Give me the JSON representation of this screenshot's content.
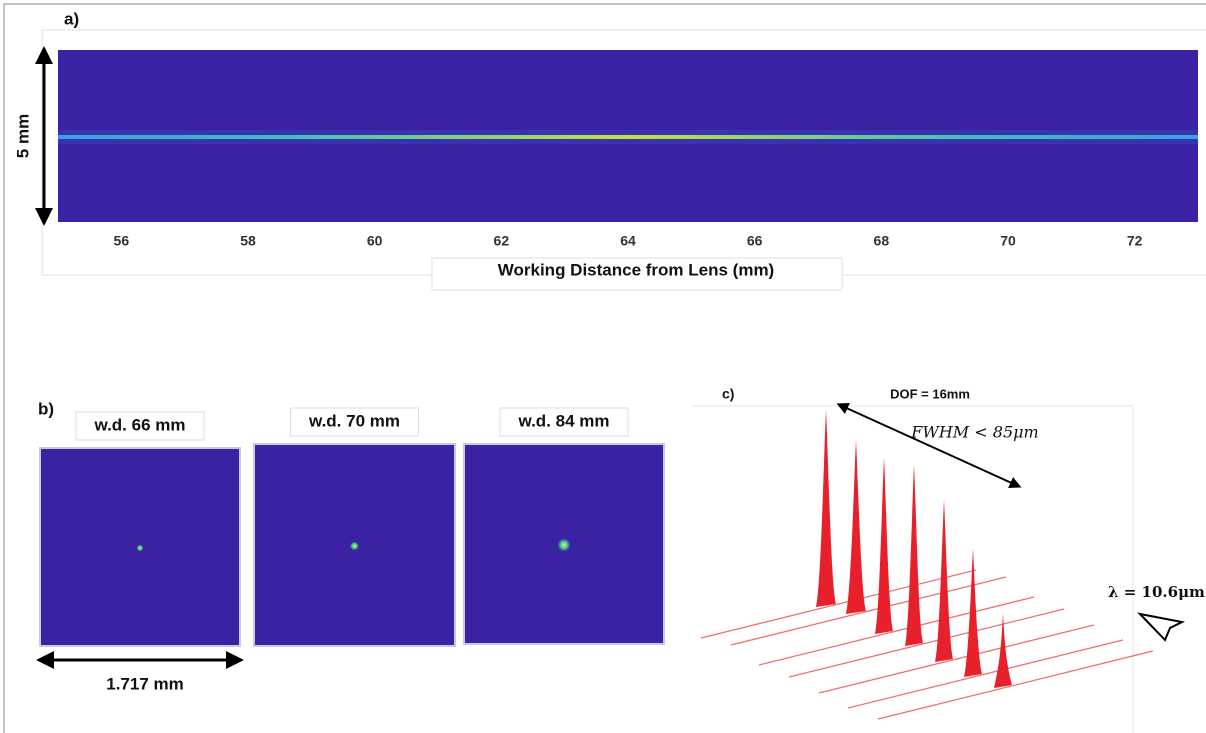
{
  "panel_a": {
    "label": "a)",
    "height_label": "5 mm",
    "xlabel": "Working Distance from Lens (mm)",
    "xlim": [
      55,
      73
    ],
    "xticks": [
      56,
      58,
      60,
      62,
      64,
      66,
      68,
      70,
      72
    ]
  },
  "panel_b": {
    "label": "b)",
    "images": [
      "w.d. 66 mm",
      "w.d. 70 mm",
      "w.d. 84 mm"
    ],
    "width_label": "1.717 mm"
  },
  "panel_c": {
    "label": "c)",
    "dof": "DOF = 16mm",
    "fwhm": "FWHM < 85μm",
    "wavelength": "λ = 10.6μm"
  }
}
